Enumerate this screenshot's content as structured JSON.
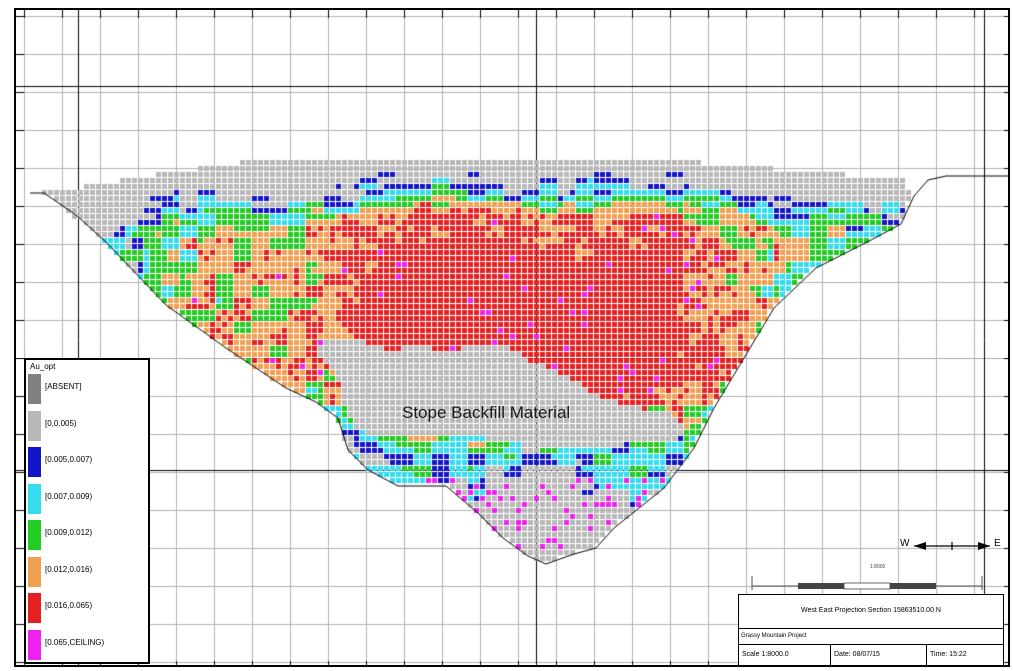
{
  "map": {
    "section_label": "Stope Backfill Material",
    "grid_cols": 25,
    "grid_rows": 18,
    "cell_cols": 88,
    "cell_rows": 52
  },
  "legend": {
    "title": "Au_opt",
    "items": [
      {
        "label": "[ABSENT]",
        "color": "#808080"
      },
      {
        "label": "[0,0.005)",
        "color": "#b8b8b8"
      },
      {
        "label": "[0.005,0.007)",
        "color": "#1515c8"
      },
      {
        "label": "[0.007,0.009)",
        "color": "#33ddee"
      },
      {
        "label": "[0.009,0.012)",
        "color": "#22cc22"
      },
      {
        "label": "[0.012,0.016)",
        "color": "#f0a050"
      },
      {
        "label": "[0.016,0.065)",
        "color": "#e62020"
      },
      {
        "label": "[0.065,CEILING)",
        "color": "#ee22ee"
      }
    ]
  },
  "north_arrow": {
    "west": "W",
    "east": "E"
  },
  "scalebar": {
    "label": "1:8000"
  },
  "title_block": {
    "title": "West East Projection Section 15863510.00 N",
    "project": "Grassy Mountain Project",
    "scale": "Scale 1:8000.0",
    "date": "Date: 08/07/15",
    "time": "Time: 15:22"
  },
  "colors": {
    "grid_major": "#000000",
    "grid_minor": "#b0b0b0",
    "outline": "#000000",
    "backfill": "#b8b8b8"
  }
}
